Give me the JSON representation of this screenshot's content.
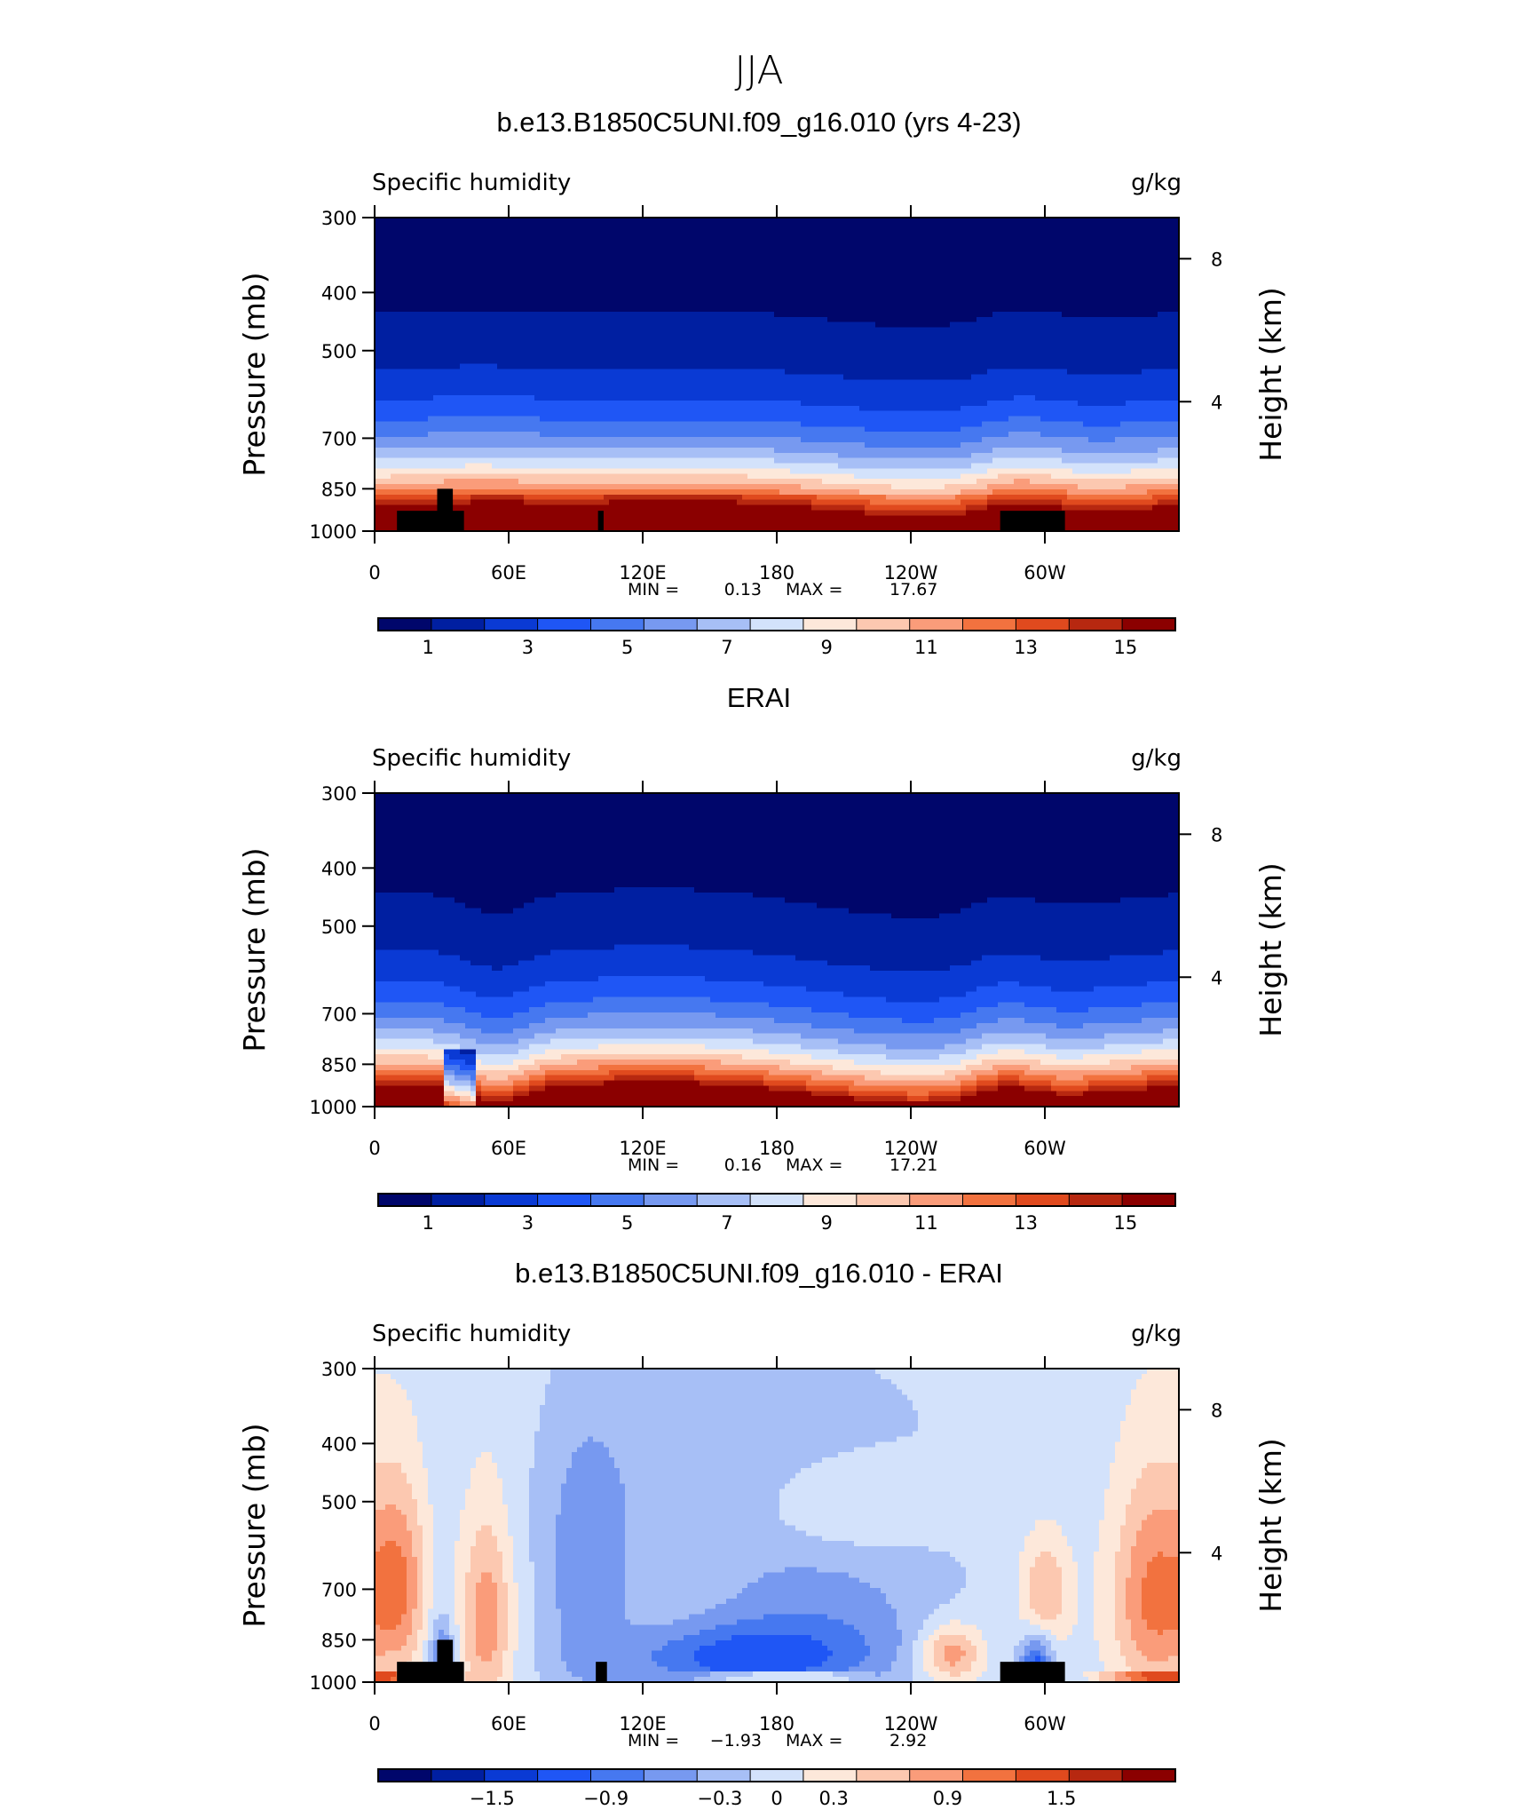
{
  "figure": {
    "title": "JJA"
  },
  "colors": {
    "absolute": [
      "#00066b",
      "#001fa1",
      "#0a3ad4",
      "#1f56f5",
      "#4678f0",
      "#7799f0",
      "#a7bff6",
      "#d3e2fb",
      "#fde8da",
      "#fcc8b0",
      "#fa9c7a",
      "#f2723f",
      "#e04a1e",
      "#b72810",
      "#8b0000"
    ],
    "difference": [
      "#00066b",
      "#001fa1",
      "#0a3ad4",
      "#1f56f5",
      "#4678f0",
      "#7799f0",
      "#a7bff6",
      "#d3e2fb",
      "#fde8da",
      "#fcc8b0",
      "#fa9c7a",
      "#f2723f",
      "#e04a1e",
      "#b72810",
      "#8b0000"
    ],
    "land": "#000000"
  },
  "chart_data": [
    {
      "type": "heatmap",
      "title": "b.e13.B1850C5UNI.f09_g16.010 (yrs 4-23)",
      "left_label": "Specific humidity",
      "right_label": "g/kg",
      "ylabel": "Pressure (mb)",
      "ylabel_right": "Height (km)",
      "x_ticks": [
        "0",
        "60E",
        "120E",
        "180",
        "120W",
        "60W"
      ],
      "x_tick_values": [
        0,
        60,
        120,
        180,
        240,
        300
      ],
      "xlim": [
        0,
        360
      ],
      "y_ticks": [
        "300",
        "400",
        "500",
        "700",
        "850",
        "1000"
      ],
      "y_tick_values": [
        300,
        400,
        500,
        700,
        850,
        1000
      ],
      "ylim": [
        1000,
        300
      ],
      "right_ticks": [
        "8",
        "4"
      ],
      "right_tick_values": [
        8,
        4
      ],
      "stats": {
        "min_label": "MIN =",
        "min_value": "0.13",
        "max_label": "MAX =",
        "max_value": "17.67"
      },
      "colorbar": {
        "labels": [
          "1",
          "3",
          "5",
          "7",
          "9",
          "11",
          "13",
          "15"
        ],
        "label_values": [
          1,
          3,
          5,
          7,
          9,
          11,
          13,
          15
        ],
        "range": [
          0,
          16
        ]
      },
      "field": {
        "kind": "model"
      }
    },
    {
      "type": "heatmap",
      "title": "ERAI",
      "left_label": "Specific humidity",
      "right_label": "g/kg",
      "ylabel": "Pressure (mb)",
      "ylabel_right": "Height (km)",
      "x_ticks": [
        "0",
        "60E",
        "120E",
        "180",
        "120W",
        "60W"
      ],
      "x_tick_values": [
        0,
        60,
        120,
        180,
        240,
        300
      ],
      "xlim": [
        0,
        360
      ],
      "y_ticks": [
        "300",
        "400",
        "500",
        "700",
        "850",
        "1000"
      ],
      "y_tick_values": [
        300,
        400,
        500,
        700,
        850,
        1000
      ],
      "ylim": [
        1000,
        300
      ],
      "right_ticks": [
        "8",
        "4"
      ],
      "right_tick_values": [
        8,
        4
      ],
      "stats": {
        "min_label": "MIN =",
        "min_value": "0.16",
        "max_label": "MAX =",
        "max_value": "17.21"
      },
      "colorbar": {
        "labels": [
          "1",
          "3",
          "5",
          "7",
          "9",
          "11",
          "13",
          "15"
        ],
        "label_values": [
          1,
          3,
          5,
          7,
          9,
          11,
          13,
          15
        ],
        "range": [
          0,
          16
        ]
      },
      "field": {
        "kind": "obs"
      }
    },
    {
      "type": "heatmap",
      "title": "b.e13.B1850C5UNI.f09_g16.010 - ERAI",
      "left_label": "Specific humidity",
      "right_label": "g/kg",
      "ylabel": "Pressure (mb)",
      "ylabel_right": "Height (km)",
      "x_ticks": [
        "0",
        "60E",
        "120E",
        "180",
        "120W",
        "60W"
      ],
      "x_tick_values": [
        0,
        60,
        120,
        180,
        240,
        300
      ],
      "xlim": [
        0,
        360
      ],
      "y_ticks": [
        "300",
        "400",
        "500",
        "700",
        "850",
        "1000"
      ],
      "y_tick_values": [
        300,
        400,
        500,
        700,
        850,
        1000
      ],
      "ylim": [
        1000,
        300
      ],
      "right_ticks": [
        "8",
        "4"
      ],
      "right_tick_values": [
        8,
        4
      ],
      "stats": {
        "min_label": "MIN =",
        "min_value": "−1.93",
        "max_label": "MAX =",
        "max_value": "2.92"
      },
      "colorbar": {
        "labels": [
          "−1.5",
          "−0.9",
          "−0.3",
          "0",
          "0.3",
          "0.9",
          "1.5"
        ],
        "label_values": [
          -1.5,
          -0.9,
          -0.3,
          0,
          0.3,
          0.9,
          1.5
        ],
        "range": [
          -2.1,
          2.1
        ]
      },
      "field": {
        "kind": "diff"
      }
    }
  ]
}
